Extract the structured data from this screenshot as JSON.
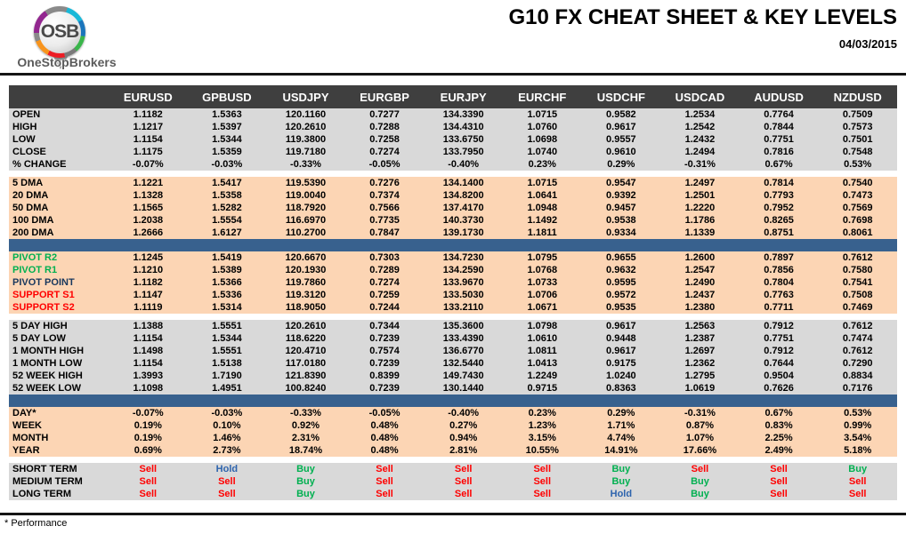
{
  "logo": {
    "abbr": "OSB",
    "name": "OneStopBrokers"
  },
  "header": {
    "title": "G10 FX CHEAT SHEET & KEY LEVELS",
    "date": "04/03/2015"
  },
  "footer": {
    "note": "* Performance"
  },
  "colors": {
    "header_bg": "#3F3F3F",
    "section_gray": "#D9D9D9",
    "section_peach": "#FCD5B4",
    "blue_bar": "#38618E",
    "pivot_green": "#00B050",
    "pivot_navy": "#17375D",
    "support_red": "#FF0000"
  },
  "signal_colors": {
    "Sell": "#FF0000",
    "Buy": "#00B050",
    "Hold": "#2E64AD"
  },
  "chart_data": {
    "type": "table",
    "columns": [
      "EURUSD",
      "GPBUSD",
      "USDJPY",
      "EURGBP",
      "EURJPY",
      "EURCHF",
      "USDCHF",
      "USDCAD",
      "AUDUSD",
      "NZDUSD"
    ],
    "sections": [
      {
        "id": "ohlc",
        "bg": "gray",
        "rows": [
          {
            "label": "OPEN",
            "values": [
              "1.1182",
              "1.5363",
              "120.1160",
              "0.7277",
              "134.3390",
              "1.0715",
              "0.9582",
              "1.2534",
              "0.7764",
              "0.7509"
            ]
          },
          {
            "label": "HIGH",
            "values": [
              "1.1217",
              "1.5397",
              "120.2610",
              "0.7288",
              "134.4310",
              "1.0760",
              "0.9617",
              "1.2542",
              "0.7844",
              "0.7573"
            ]
          },
          {
            "label": "LOW",
            "values": [
              "1.1154",
              "1.5344",
              "119.3800",
              "0.7258",
              "133.6750",
              "1.0698",
              "0.9557",
              "1.2432",
              "0.7751",
              "0.7501"
            ]
          },
          {
            "label": "CLOSE",
            "values": [
              "1.1175",
              "1.5359",
              "119.7180",
              "0.7274",
              "133.7950",
              "1.0740",
              "0.9610",
              "1.2494",
              "0.7816",
              "0.7548"
            ]
          },
          {
            "label": "% CHANGE",
            "values": [
              "-0.07%",
              "-0.03%",
              "-0.33%",
              "-0.05%",
              "-0.40%",
              "0.23%",
              "0.29%",
              "-0.31%",
              "0.67%",
              "0.53%"
            ]
          }
        ]
      },
      {
        "type": "gap"
      },
      {
        "id": "dma",
        "bg": "peach",
        "rows": [
          {
            "label": "5 DMA",
            "values": [
              "1.1221",
              "1.5417",
              "119.5390",
              "0.7276",
              "134.1400",
              "1.0715",
              "0.9547",
              "1.2497",
              "0.7814",
              "0.7540"
            ]
          },
          {
            "label": "20 DMA",
            "values": [
              "1.1328",
              "1.5358",
              "119.0040",
              "0.7374",
              "134.8200",
              "1.0641",
              "0.9392",
              "1.2501",
              "0.7793",
              "0.7473"
            ]
          },
          {
            "label": "50 DMA",
            "values": [
              "1.1565",
              "1.5282",
              "118.7920",
              "0.7566",
              "137.4170",
              "1.0948",
              "0.9457",
              "1.2220",
              "0.7952",
              "0.7569"
            ]
          },
          {
            "label": "100 DMA",
            "values": [
              "1.2038",
              "1.5554",
              "116.6970",
              "0.7735",
              "140.3730",
              "1.1492",
              "0.9538",
              "1.1786",
              "0.8265",
              "0.7698"
            ]
          },
          {
            "label": "200 DMA",
            "values": [
              "1.2666",
              "1.6127",
              "110.2700",
              "0.7847",
              "139.1730",
              "1.1811",
              "0.9334",
              "1.1339",
              "0.8751",
              "0.8061"
            ]
          }
        ]
      },
      {
        "type": "divider"
      },
      {
        "id": "pivots",
        "bg": "peach",
        "rows": [
          {
            "label": "PIVOT R2",
            "label_color": "#00B050",
            "values": [
              "1.1245",
              "1.5419",
              "120.6670",
              "0.7303",
              "134.7230",
              "1.0795",
              "0.9655",
              "1.2600",
              "0.7897",
              "0.7612"
            ]
          },
          {
            "label": "PIVOT R1",
            "label_color": "#00B050",
            "values": [
              "1.1210",
              "1.5389",
              "120.1930",
              "0.7289",
              "134.2590",
              "1.0768",
              "0.9632",
              "1.2547",
              "0.7856",
              "0.7580"
            ]
          },
          {
            "label": "PIVOT POINT",
            "label_color": "#17375D",
            "values": [
              "1.1182",
              "1.5366",
              "119.7860",
              "0.7274",
              "133.9670",
              "1.0733",
              "0.9595",
              "1.2490",
              "0.7804",
              "0.7541"
            ]
          },
          {
            "label": "SUPPORT S1",
            "label_color": "#FF0000",
            "values": [
              "1.1147",
              "1.5336",
              "119.3120",
              "0.7259",
              "133.5030",
              "1.0706",
              "0.9572",
              "1.2437",
              "0.7763",
              "0.7508"
            ]
          },
          {
            "label": "SUPPORT S2",
            "label_color": "#FF0000",
            "values": [
              "1.1119",
              "1.5314",
              "118.9050",
              "0.7244",
              "133.2110",
              "1.0671",
              "0.9535",
              "1.2380",
              "0.7711",
              "0.7469"
            ]
          }
        ]
      },
      {
        "type": "gap"
      },
      {
        "id": "ranges",
        "bg": "gray",
        "rows": [
          {
            "label": "5 DAY HIGH",
            "values": [
              "1.1388",
              "1.5551",
              "120.2610",
              "0.7344",
              "135.3600",
              "1.0798",
              "0.9617",
              "1.2563",
              "0.7912",
              "0.7612"
            ]
          },
          {
            "label": "5 DAY LOW",
            "values": [
              "1.1154",
              "1.5344",
              "118.6220",
              "0.7239",
              "133.4390",
              "1.0610",
              "0.9448",
              "1.2387",
              "0.7751",
              "0.7474"
            ]
          },
          {
            "label": "1 MONTH HIGH",
            "values": [
              "1.1498",
              "1.5551",
              "120.4710",
              "0.7574",
              "136.6770",
              "1.0811",
              "0.9617",
              "1.2697",
              "0.7912",
              "0.7612"
            ]
          },
          {
            "label": "1 MONTH LOW",
            "values": [
              "1.1154",
              "1.5138",
              "117.0180",
              "0.7239",
              "132.5440",
              "1.0413",
              "0.9175",
              "1.2362",
              "0.7644",
              "0.7290"
            ]
          },
          {
            "label": "52 WEEK HIGH",
            "values": [
              "1.3993",
              "1.7190",
              "121.8390",
              "0.8399",
              "149.7430",
              "1.2249",
              "1.0240",
              "1.2795",
              "0.9504",
              "0.8834"
            ]
          },
          {
            "label": "52 WEEK LOW",
            "values": [
              "1.1098",
              "1.4951",
              "100.8240",
              "0.7239",
              "130.1440",
              "0.9715",
              "0.8363",
              "1.0619",
              "0.7626",
              "0.7176"
            ]
          }
        ]
      },
      {
        "type": "divider"
      },
      {
        "id": "performance",
        "bg": "peach",
        "rows": [
          {
            "label": "DAY*",
            "values": [
              "-0.07%",
              "-0.03%",
              "-0.33%",
              "-0.05%",
              "-0.40%",
              "0.23%",
              "0.29%",
              "-0.31%",
              "0.67%",
              "0.53%"
            ]
          },
          {
            "label": "WEEK",
            "values": [
              "0.19%",
              "0.10%",
              "0.92%",
              "0.48%",
              "0.27%",
              "1.23%",
              "1.71%",
              "0.87%",
              "0.83%",
              "0.99%"
            ]
          },
          {
            "label": "MONTH",
            "values": [
              "0.19%",
              "1.46%",
              "2.31%",
              "0.48%",
              "0.94%",
              "3.15%",
              "4.74%",
              "1.07%",
              "2.25%",
              "3.54%"
            ]
          },
          {
            "label": "YEAR",
            "values": [
              "0.69%",
              "2.73%",
              "18.74%",
              "0.48%",
              "2.81%",
              "10.55%",
              "14.91%",
              "17.66%",
              "2.49%",
              "5.18%"
            ]
          }
        ]
      },
      {
        "type": "gap"
      },
      {
        "id": "signals",
        "bg": "gray",
        "rows": [
          {
            "label": "SHORT TERM",
            "values": [
              "Sell",
              "Hold",
              "Buy",
              "Sell",
              "Sell",
              "Sell",
              "Buy",
              "Sell",
              "Sell",
              "Buy"
            ]
          },
          {
            "label": "MEDIUM TERM",
            "values": [
              "Sell",
              "Sell",
              "Buy",
              "Sell",
              "Sell",
              "Sell",
              "Buy",
              "Buy",
              "Sell",
              "Sell"
            ]
          },
          {
            "label": "LONG TERM",
            "values": [
              "Sell",
              "Sell",
              "Buy",
              "Sell",
              "Sell",
              "Sell",
              "Hold",
              "Buy",
              "Sell",
              "Sell"
            ]
          }
        ]
      }
    ]
  }
}
